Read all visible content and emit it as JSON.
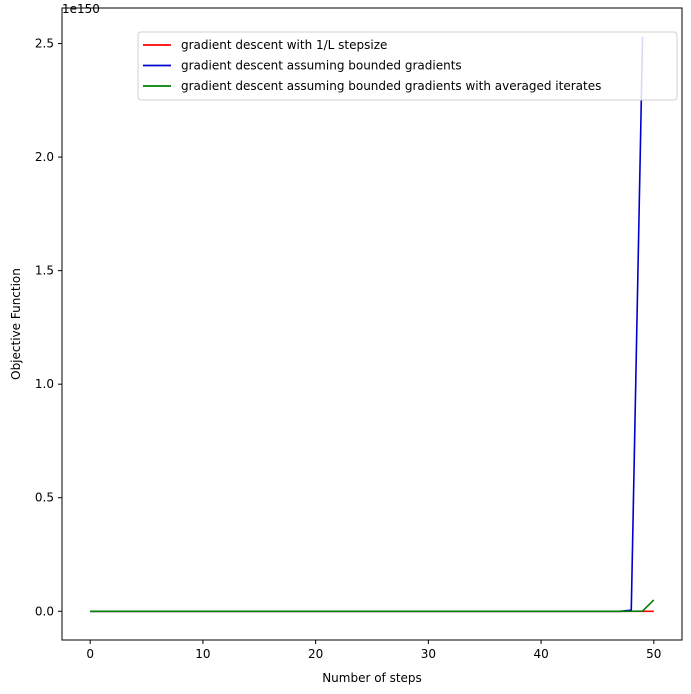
{
  "chart_data": {
    "type": "line",
    "xlabel": "Number of steps",
    "ylabel": "Objective Function",
    "offset_text": "1e150",
    "xlim": [
      -2.5,
      52.5
    ],
    "ylim": [
      -0.1265,
      2.6565
    ],
    "x_ticks": [
      0,
      10,
      20,
      30,
      40,
      50
    ],
    "x_tick_labels": [
      "0",
      "10",
      "20",
      "30",
      "40",
      "50"
    ],
    "y_ticks": [
      0,
      0.5,
      1.0,
      1.5,
      2.0,
      2.5
    ],
    "y_tick_labels": [
      "0.0",
      "0.5",
      "1.0",
      "1.5",
      "2.0",
      "2.5"
    ],
    "grid": false,
    "legend_position": "top-right",
    "series": [
      {
        "name": "gradient descent with 1/L stepsize",
        "color": "#ff0000",
        "points": [
          [
            0,
            0
          ],
          [
            50,
            0
          ]
        ]
      },
      {
        "name": "gradient descent assuming bounded gradients",
        "color": "#0000cc",
        "points": [
          [
            0,
            0
          ],
          [
            47,
            0
          ],
          [
            48,
            0.005
          ],
          [
            49,
            2.53
          ]
        ]
      },
      {
        "name": "gradient descent assuming bounded gradients with averaged iterates",
        "color": "#008000",
        "points": [
          [
            0,
            0
          ],
          [
            47,
            0
          ],
          [
            48,
            0.0001
          ],
          [
            49,
            0.001
          ],
          [
            50,
            0.05
          ]
        ]
      }
    ]
  }
}
